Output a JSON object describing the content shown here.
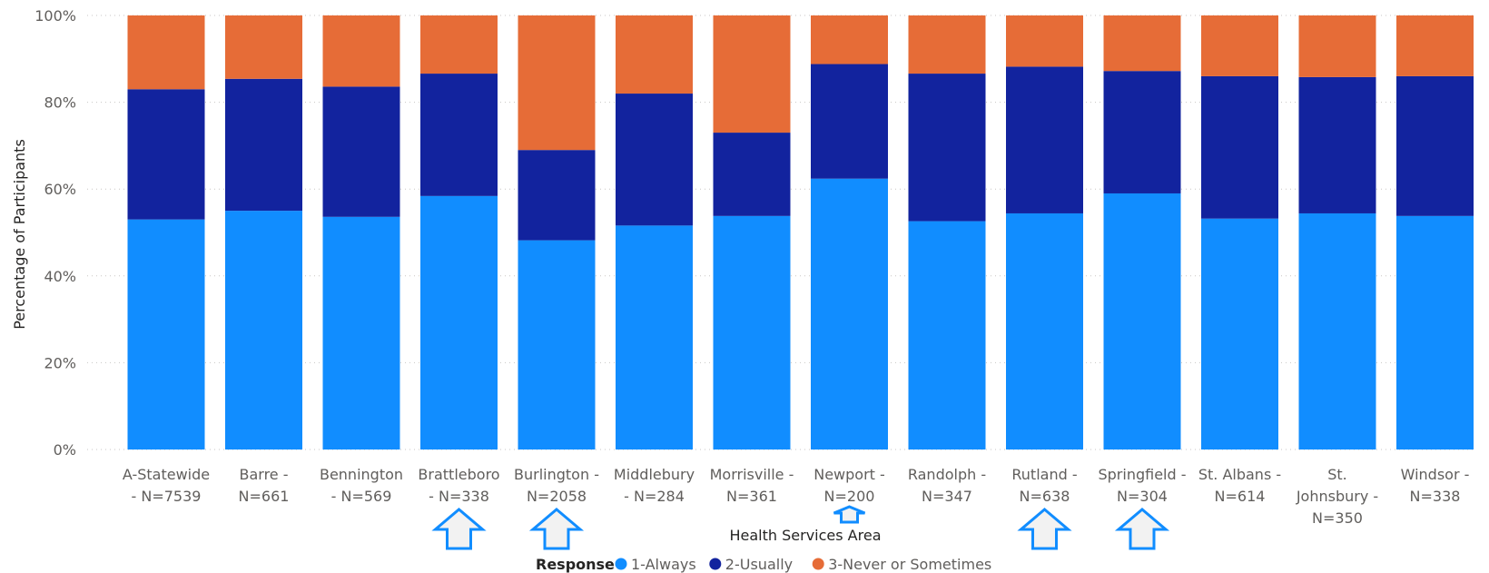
{
  "chart_data": {
    "type": "bar",
    "stacked": true,
    "ylabel": "Percentage of Participants",
    "xlabel": "Health Services Area",
    "ylim": [
      0,
      100
    ],
    "y_ticks": [
      "0%",
      "20%",
      "40%",
      "60%",
      "80%",
      "100%"
    ],
    "grid": true,
    "categories": [
      [
        "A-Statewide",
        "- N=7539"
      ],
      [
        "Barre -",
        "N=661"
      ],
      [
        "Bennington",
        "- N=569"
      ],
      [
        "Brattleboro",
        "- N=338"
      ],
      [
        "Burlington -",
        "N=2058"
      ],
      [
        "Middlebury",
        "- N=284"
      ],
      [
        "Morrisville -",
        "N=361"
      ],
      [
        "Newport -",
        "N=200"
      ],
      [
        "Randolph -",
        "N=347"
      ],
      [
        "Rutland -",
        "N=638"
      ],
      [
        "Springfield -",
        "N=304"
      ],
      [
        "St. Albans -",
        "N=614"
      ],
      [
        "St.",
        "Johnsbury -",
        "N=350"
      ],
      [
        "Windsor -",
        "N=338"
      ]
    ],
    "series": [
      {
        "name": "1-Always",
        "color": "#118dff",
        "values": [
          53,
          55,
          53.6,
          58.4,
          48.2,
          51.6,
          53.8,
          62.4,
          52.6,
          54.4,
          59,
          53.2,
          54.4,
          53.8
        ]
      },
      {
        "name": "2-Usually",
        "color": "#12239e",
        "values": [
          30,
          30.4,
          30,
          28.2,
          20.8,
          30.4,
          19.2,
          26.4,
          34,
          33.8,
          28.2,
          32.8,
          31.4,
          32.2
        ]
      },
      {
        "name": "3-Never or Sometimes",
        "color": "#e66c37",
        "values": [
          17,
          14.6,
          16.4,
          13.4,
          31,
          18,
          27,
          11.2,
          13.4,
          11.8,
          12.8,
          14,
          14.2,
          14
        ]
      }
    ],
    "legend": {
      "title": "Response",
      "position": "bottom"
    },
    "annotations": [
      {
        "type": "up-arrow",
        "category": "Brattleboro",
        "size": "large"
      },
      {
        "type": "up-arrow",
        "category": "Burlington",
        "size": "large"
      },
      {
        "type": "up-arrow",
        "category": "Newport",
        "size": "small"
      },
      {
        "type": "up-arrow",
        "category": "Rutland",
        "size": "large"
      },
      {
        "type": "up-arrow",
        "category": "Springfield",
        "size": "large"
      }
    ]
  }
}
